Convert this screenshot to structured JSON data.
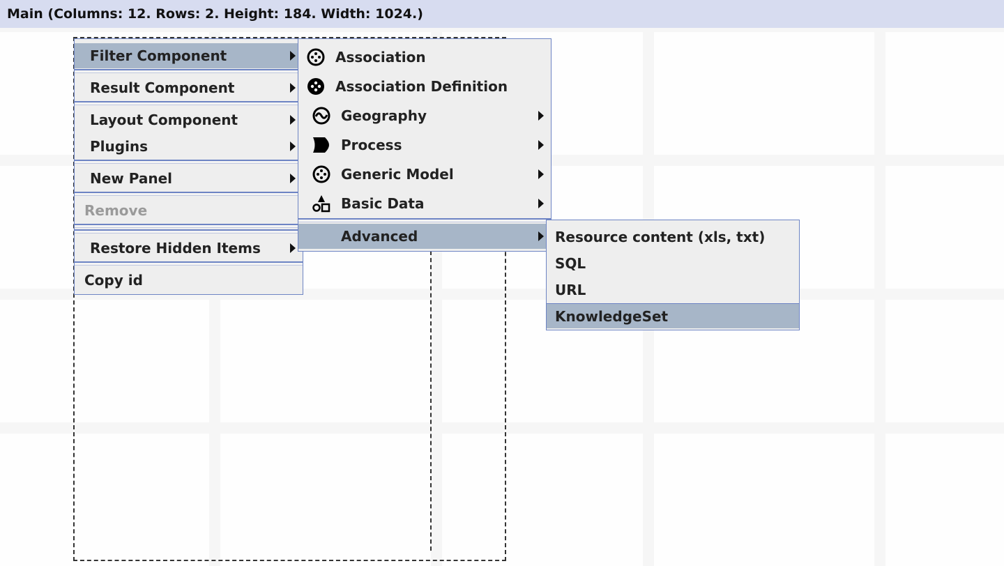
{
  "header": {
    "title": "Main (Columns: 12. Rows: 2. Height: 184. Width: 1024.)"
  },
  "menu_main": {
    "items": [
      {
        "label": "Filter Component",
        "submenu": true,
        "highlighted": true
      },
      {
        "label": "Result Component",
        "submenu": true
      },
      {
        "label": "Layout Component",
        "submenu": true
      },
      {
        "label": "Plugins",
        "submenu": true
      },
      {
        "label": "New Panel",
        "submenu": true
      },
      {
        "label": "Remove",
        "disabled": true
      },
      {
        "label": "Restore Hidden Items",
        "submenu": true
      },
      {
        "label": "Copy id"
      }
    ]
  },
  "menu_filter": {
    "items": [
      {
        "label": "Association",
        "icon": "association-icon"
      },
      {
        "label": "Association Definition",
        "icon": "association-definition-icon"
      },
      {
        "label": "Geography",
        "icon": "geography-icon",
        "submenu": true
      },
      {
        "label": "Process",
        "icon": "process-icon",
        "submenu": true
      },
      {
        "label": "Generic Model",
        "icon": "generic-model-icon",
        "submenu": true
      },
      {
        "label": "Basic Data",
        "icon": "basic-data-icon",
        "submenu": true
      },
      {
        "label": "Advanced",
        "submenu": true,
        "highlighted": true
      }
    ]
  },
  "menu_advanced": {
    "items": [
      {
        "label": "Resource content (xls, txt)"
      },
      {
        "label": "SQL"
      },
      {
        "label": "URL"
      },
      {
        "label": "KnowledgeSet",
        "highlighted": true
      }
    ]
  },
  "colors": {
    "header_bg": "#d7dcf0",
    "highlight": "#a7b6c8",
    "menu_border": "#6d84c4",
    "menu_bg": "#eeeeee"
  }
}
